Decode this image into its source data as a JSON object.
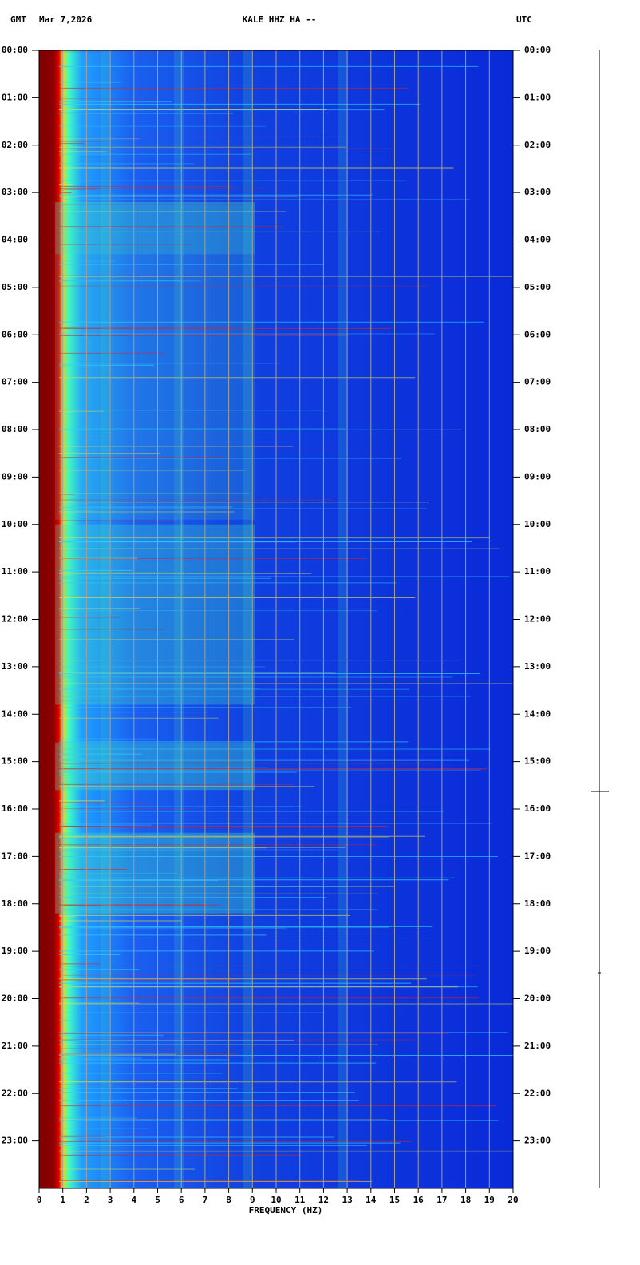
{
  "chart_data": {
    "type": "spectrogram",
    "timezone_left": "GMT",
    "date": "Mar 7,2026",
    "title": "KALE HHZ HA --",
    "timezone_right": "UTC",
    "xlabel": "FREQUENCY (HZ)",
    "xlim": [
      0,
      20
    ],
    "xticks": [
      0,
      1,
      2,
      3,
      4,
      5,
      6,
      7,
      8,
      9,
      10,
      11,
      12,
      13,
      14,
      15,
      16,
      17,
      18,
      19,
      20
    ],
    "ylim": [
      0,
      24
    ],
    "yticks": [
      {
        "value": 0,
        "label": "00:00"
      },
      {
        "value": 1,
        "label": "01:00"
      },
      {
        "value": 2,
        "label": "02:00"
      },
      {
        "value": 3,
        "label": "03:00"
      },
      {
        "value": 4,
        "label": "04:00"
      },
      {
        "value": 5,
        "label": "05:00"
      },
      {
        "value": 6,
        "label": "06:00"
      },
      {
        "value": 7,
        "label": "07:00"
      },
      {
        "value": 8,
        "label": "08:00"
      },
      {
        "value": 9,
        "label": "09:00"
      },
      {
        "value": 10,
        "label": "10:00"
      },
      {
        "value": 11,
        "label": "11:00"
      },
      {
        "value": 12,
        "label": "12:00"
      },
      {
        "value": 13,
        "label": "13:00"
      },
      {
        "value": 14,
        "label": "14:00"
      },
      {
        "value": 15,
        "label": "15:00"
      },
      {
        "value": 16,
        "label": "16:00"
      },
      {
        "value": 17,
        "label": "17:00"
      },
      {
        "value": 18,
        "label": "18:00"
      },
      {
        "value": 19,
        "label": "19:00"
      },
      {
        "value": 20,
        "label": "20:00"
      },
      {
        "value": 21,
        "label": "21:00"
      },
      {
        "value": 22,
        "label": "22:00"
      },
      {
        "value": 23,
        "label": "23:00"
      }
    ],
    "grid": true,
    "colormap": "jet"
  }
}
